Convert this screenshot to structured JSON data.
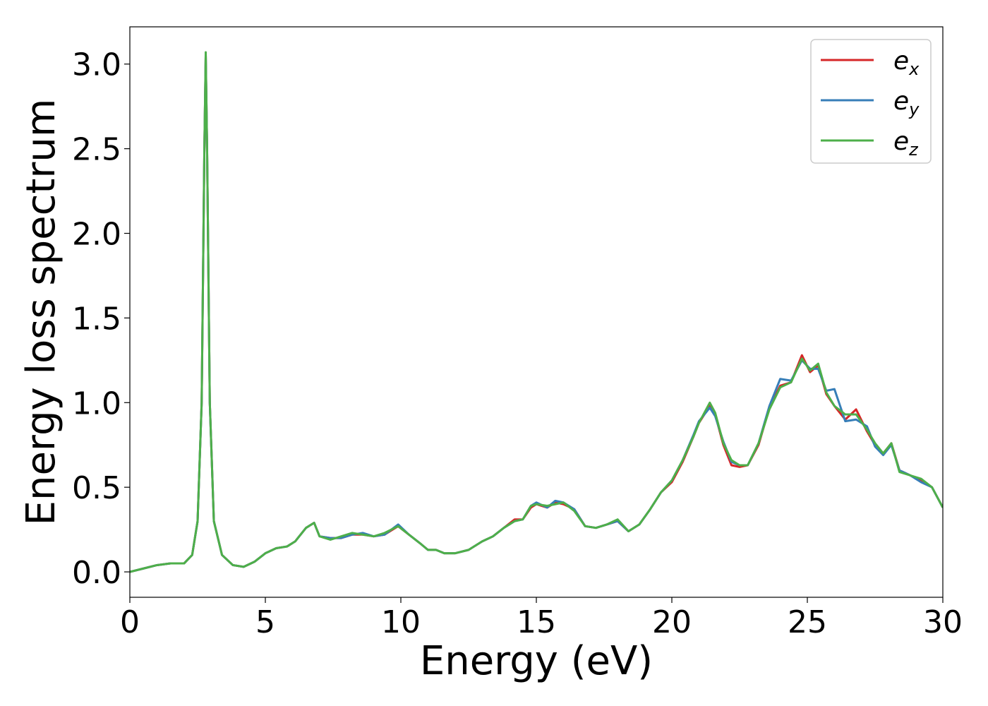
{
  "chart_data": {
    "type": "line",
    "title": "",
    "xlabel": "Energy (eV)",
    "ylabel": "Energy loss spectrum",
    "xlim": [
      0,
      30
    ],
    "ylim": [
      -0.15,
      3.22
    ],
    "xticks": [
      0,
      5,
      10,
      15,
      20,
      25,
      30
    ],
    "xtick_labels": [
      "0",
      "5",
      "10",
      "15",
      "20",
      "25",
      "30"
    ],
    "yticks": [
      0.0,
      0.5,
      1.0,
      1.5,
      2.0,
      2.5,
      3.0
    ],
    "ytick_labels": [
      "0.0",
      "0.5",
      "1.0",
      "1.5",
      "2.0",
      "2.5",
      "3.0"
    ],
    "grid": false,
    "legend_position": "top-right",
    "series": [
      {
        "name": "e_x",
        "legend_main": "e",
        "legend_sub": "x",
        "color": "#d62728",
        "points": [
          [
            0,
            0
          ],
          [
            0.5,
            0.02
          ],
          [
            1,
            0.04
          ],
          [
            1.5,
            0.05
          ],
          [
            2,
            0.05
          ],
          [
            2.3,
            0.1
          ],
          [
            2.5,
            0.3
          ],
          [
            2.65,
            1.0
          ],
          [
            2.75,
            2.5
          ],
          [
            2.8,
            3.05
          ],
          [
            2.85,
            2.5
          ],
          [
            2.95,
            1.0
          ],
          [
            3.1,
            0.3
          ],
          [
            3.4,
            0.1
          ],
          [
            3.8,
            0.04
          ],
          [
            4.2,
            0.03
          ],
          [
            4.6,
            0.06
          ],
          [
            5,
            0.11
          ],
          [
            5.4,
            0.14
          ],
          [
            5.8,
            0.15
          ],
          [
            6.1,
            0.18
          ],
          [
            6.5,
            0.26
          ],
          [
            6.8,
            0.29
          ],
          [
            7,
            0.21
          ],
          [
            7.4,
            0.2
          ],
          [
            7.8,
            0.2
          ],
          [
            8.2,
            0.22
          ],
          [
            8.6,
            0.22
          ],
          [
            9,
            0.21
          ],
          [
            9.4,
            0.22
          ],
          [
            9.9,
            0.27
          ],
          [
            10.3,
            0.22
          ],
          [
            10.7,
            0.17
          ],
          [
            11,
            0.13
          ],
          [
            11.3,
            0.13
          ],
          [
            11.6,
            0.11
          ],
          [
            12,
            0.11
          ],
          [
            12.5,
            0.13
          ],
          [
            13,
            0.18
          ],
          [
            13.4,
            0.21
          ],
          [
            13.8,
            0.26
          ],
          [
            14.2,
            0.31
          ],
          [
            14.5,
            0.31
          ],
          [
            14.8,
            0.38
          ],
          [
            15,
            0.4
          ],
          [
            15.4,
            0.38
          ],
          [
            15.7,
            0.41
          ],
          [
            16,
            0.4
          ],
          [
            16.4,
            0.37
          ],
          [
            16.8,
            0.27
          ],
          [
            17.2,
            0.26
          ],
          [
            17.6,
            0.28
          ],
          [
            18,
            0.3
          ],
          [
            18.4,
            0.24
          ],
          [
            18.8,
            0.28
          ],
          [
            19.2,
            0.37
          ],
          [
            19.6,
            0.47
          ],
          [
            20,
            0.53
          ],
          [
            20.4,
            0.65
          ],
          [
            20.8,
            0.8
          ],
          [
            21,
            0.88
          ],
          [
            21.2,
            0.93
          ],
          [
            21.4,
            0.99
          ],
          [
            21.6,
            0.93
          ],
          [
            21.9,
            0.75
          ],
          [
            22.2,
            0.63
          ],
          [
            22.5,
            0.62
          ],
          [
            22.8,
            0.63
          ],
          [
            23.2,
            0.75
          ],
          [
            23.6,
            0.97
          ],
          [
            24,
            1.1
          ],
          [
            24.4,
            1.12
          ],
          [
            24.8,
            1.28
          ],
          [
            25.1,
            1.18
          ],
          [
            25.4,
            1.22
          ],
          [
            25.7,
            1.05
          ],
          [
            26,
            0.98
          ],
          [
            26.4,
            0.9
          ],
          [
            26.8,
            0.96
          ],
          [
            27.2,
            0.83
          ],
          [
            27.5,
            0.75
          ],
          [
            27.8,
            0.7
          ],
          [
            28.1,
            0.76
          ],
          [
            28.4,
            0.6
          ],
          [
            28.8,
            0.57
          ],
          [
            29.2,
            0.54
          ],
          [
            29.6,
            0.5
          ],
          [
            30,
            0.38
          ]
        ]
      },
      {
        "name": "e_y",
        "legend_main": "e",
        "legend_sub": "y",
        "color": "#377eb8",
        "points": [
          [
            0,
            0
          ],
          [
            0.5,
            0.02
          ],
          [
            1,
            0.04
          ],
          [
            1.5,
            0.05
          ],
          [
            2,
            0.05
          ],
          [
            2.3,
            0.1
          ],
          [
            2.5,
            0.3
          ],
          [
            2.65,
            1.0
          ],
          [
            2.75,
            2.5
          ],
          [
            2.8,
            3.05
          ],
          [
            2.85,
            2.5
          ],
          [
            2.95,
            1.0
          ],
          [
            3.1,
            0.3
          ],
          [
            3.4,
            0.1
          ],
          [
            3.8,
            0.04
          ],
          [
            4.2,
            0.03
          ],
          [
            4.6,
            0.06
          ],
          [
            5,
            0.11
          ],
          [
            5.4,
            0.14
          ],
          [
            5.8,
            0.15
          ],
          [
            6.1,
            0.18
          ],
          [
            6.5,
            0.26
          ],
          [
            6.8,
            0.29
          ],
          [
            7,
            0.21
          ],
          [
            7.4,
            0.2
          ],
          [
            7.8,
            0.2
          ],
          [
            8.2,
            0.22
          ],
          [
            8.6,
            0.23
          ],
          [
            9,
            0.21
          ],
          [
            9.4,
            0.22
          ],
          [
            9.9,
            0.28
          ],
          [
            10.3,
            0.22
          ],
          [
            10.7,
            0.17
          ],
          [
            11,
            0.13
          ],
          [
            11.3,
            0.13
          ],
          [
            11.6,
            0.11
          ],
          [
            12,
            0.11
          ],
          [
            12.5,
            0.13
          ],
          [
            13,
            0.18
          ],
          [
            13.4,
            0.21
          ],
          [
            13.8,
            0.26
          ],
          [
            14.2,
            0.3
          ],
          [
            14.5,
            0.31
          ],
          [
            14.8,
            0.39
          ],
          [
            15,
            0.41
          ],
          [
            15.4,
            0.38
          ],
          [
            15.7,
            0.42
          ],
          [
            16,
            0.41
          ],
          [
            16.4,
            0.37
          ],
          [
            16.8,
            0.27
          ],
          [
            17.2,
            0.26
          ],
          [
            17.6,
            0.28
          ],
          [
            18,
            0.3
          ],
          [
            18.4,
            0.24
          ],
          [
            18.8,
            0.28
          ],
          [
            19.2,
            0.37
          ],
          [
            19.6,
            0.47
          ],
          [
            20,
            0.54
          ],
          [
            20.4,
            0.66
          ],
          [
            20.8,
            0.81
          ],
          [
            21,
            0.89
          ],
          [
            21.2,
            0.93
          ],
          [
            21.4,
            0.97
          ],
          [
            21.6,
            0.92
          ],
          [
            21.9,
            0.77
          ],
          [
            22.2,
            0.65
          ],
          [
            22.5,
            0.63
          ],
          [
            22.8,
            0.63
          ],
          [
            23.2,
            0.76
          ],
          [
            23.6,
            0.98
          ],
          [
            24,
            1.14
          ],
          [
            24.4,
            1.13
          ],
          [
            24.8,
            1.25
          ],
          [
            25.1,
            1.2
          ],
          [
            25.4,
            1.2
          ],
          [
            25.7,
            1.07
          ],
          [
            26,
            1.08
          ],
          [
            26.4,
            0.89
          ],
          [
            26.8,
            0.9
          ],
          [
            27.2,
            0.86
          ],
          [
            27.5,
            0.74
          ],
          [
            27.8,
            0.69
          ],
          [
            28.1,
            0.75
          ],
          [
            28.4,
            0.6
          ],
          [
            28.8,
            0.57
          ],
          [
            29.2,
            0.53
          ],
          [
            29.6,
            0.5
          ],
          [
            30,
            0.38
          ]
        ]
      },
      {
        "name": "e_z",
        "legend_main": "e",
        "legend_sub": "z",
        "color": "#4daf4a",
        "points": [
          [
            0,
            0
          ],
          [
            0.5,
            0.02
          ],
          [
            1,
            0.04
          ],
          [
            1.5,
            0.05
          ],
          [
            2,
            0.05
          ],
          [
            2.3,
            0.1
          ],
          [
            2.5,
            0.3
          ],
          [
            2.65,
            1.0
          ],
          [
            2.75,
            2.5
          ],
          [
            2.8,
            3.07
          ],
          [
            2.85,
            2.5
          ],
          [
            2.95,
            1.0
          ],
          [
            3.1,
            0.3
          ],
          [
            3.4,
            0.1
          ],
          [
            3.8,
            0.04
          ],
          [
            4.2,
            0.03
          ],
          [
            4.6,
            0.06
          ],
          [
            5,
            0.11
          ],
          [
            5.4,
            0.14
          ],
          [
            5.8,
            0.15
          ],
          [
            6.1,
            0.18
          ],
          [
            6.5,
            0.26
          ],
          [
            6.8,
            0.29
          ],
          [
            7,
            0.21
          ],
          [
            7.4,
            0.19
          ],
          [
            7.8,
            0.21
          ],
          [
            8.2,
            0.23
          ],
          [
            8.6,
            0.22
          ],
          [
            9,
            0.21
          ],
          [
            9.4,
            0.23
          ],
          [
            9.9,
            0.27
          ],
          [
            10.3,
            0.22
          ],
          [
            10.7,
            0.17
          ],
          [
            11,
            0.13
          ],
          [
            11.3,
            0.13
          ],
          [
            11.6,
            0.11
          ],
          [
            12,
            0.11
          ],
          [
            12.5,
            0.13
          ],
          [
            13,
            0.18
          ],
          [
            13.4,
            0.21
          ],
          [
            13.8,
            0.26
          ],
          [
            14.2,
            0.3
          ],
          [
            14.5,
            0.31
          ],
          [
            14.8,
            0.39
          ],
          [
            15,
            0.4
          ],
          [
            15.4,
            0.39
          ],
          [
            15.7,
            0.4
          ],
          [
            16,
            0.41
          ],
          [
            16.4,
            0.36
          ],
          [
            16.8,
            0.27
          ],
          [
            17.2,
            0.26
          ],
          [
            17.6,
            0.28
          ],
          [
            18,
            0.31
          ],
          [
            18.4,
            0.24
          ],
          [
            18.8,
            0.28
          ],
          [
            19.2,
            0.37
          ],
          [
            19.6,
            0.47
          ],
          [
            20,
            0.54
          ],
          [
            20.4,
            0.66
          ],
          [
            20.8,
            0.8
          ],
          [
            21,
            0.88
          ],
          [
            21.2,
            0.94
          ],
          [
            21.4,
            1.0
          ],
          [
            21.6,
            0.94
          ],
          [
            21.9,
            0.76
          ],
          [
            22.2,
            0.66
          ],
          [
            22.5,
            0.63
          ],
          [
            22.8,
            0.63
          ],
          [
            23.2,
            0.76
          ],
          [
            23.6,
            0.96
          ],
          [
            24,
            1.09
          ],
          [
            24.4,
            1.12
          ],
          [
            24.8,
            1.26
          ],
          [
            25.1,
            1.19
          ],
          [
            25.4,
            1.23
          ],
          [
            25.7,
            1.06
          ],
          [
            26,
            0.98
          ],
          [
            26.4,
            0.93
          ],
          [
            26.8,
            0.93
          ],
          [
            27.2,
            0.84
          ],
          [
            27.5,
            0.76
          ],
          [
            27.8,
            0.7
          ],
          [
            28.1,
            0.76
          ],
          [
            28.4,
            0.59
          ],
          [
            28.8,
            0.57
          ],
          [
            29.2,
            0.55
          ],
          [
            29.6,
            0.5
          ],
          [
            30,
            0.38
          ]
        ]
      }
    ]
  }
}
